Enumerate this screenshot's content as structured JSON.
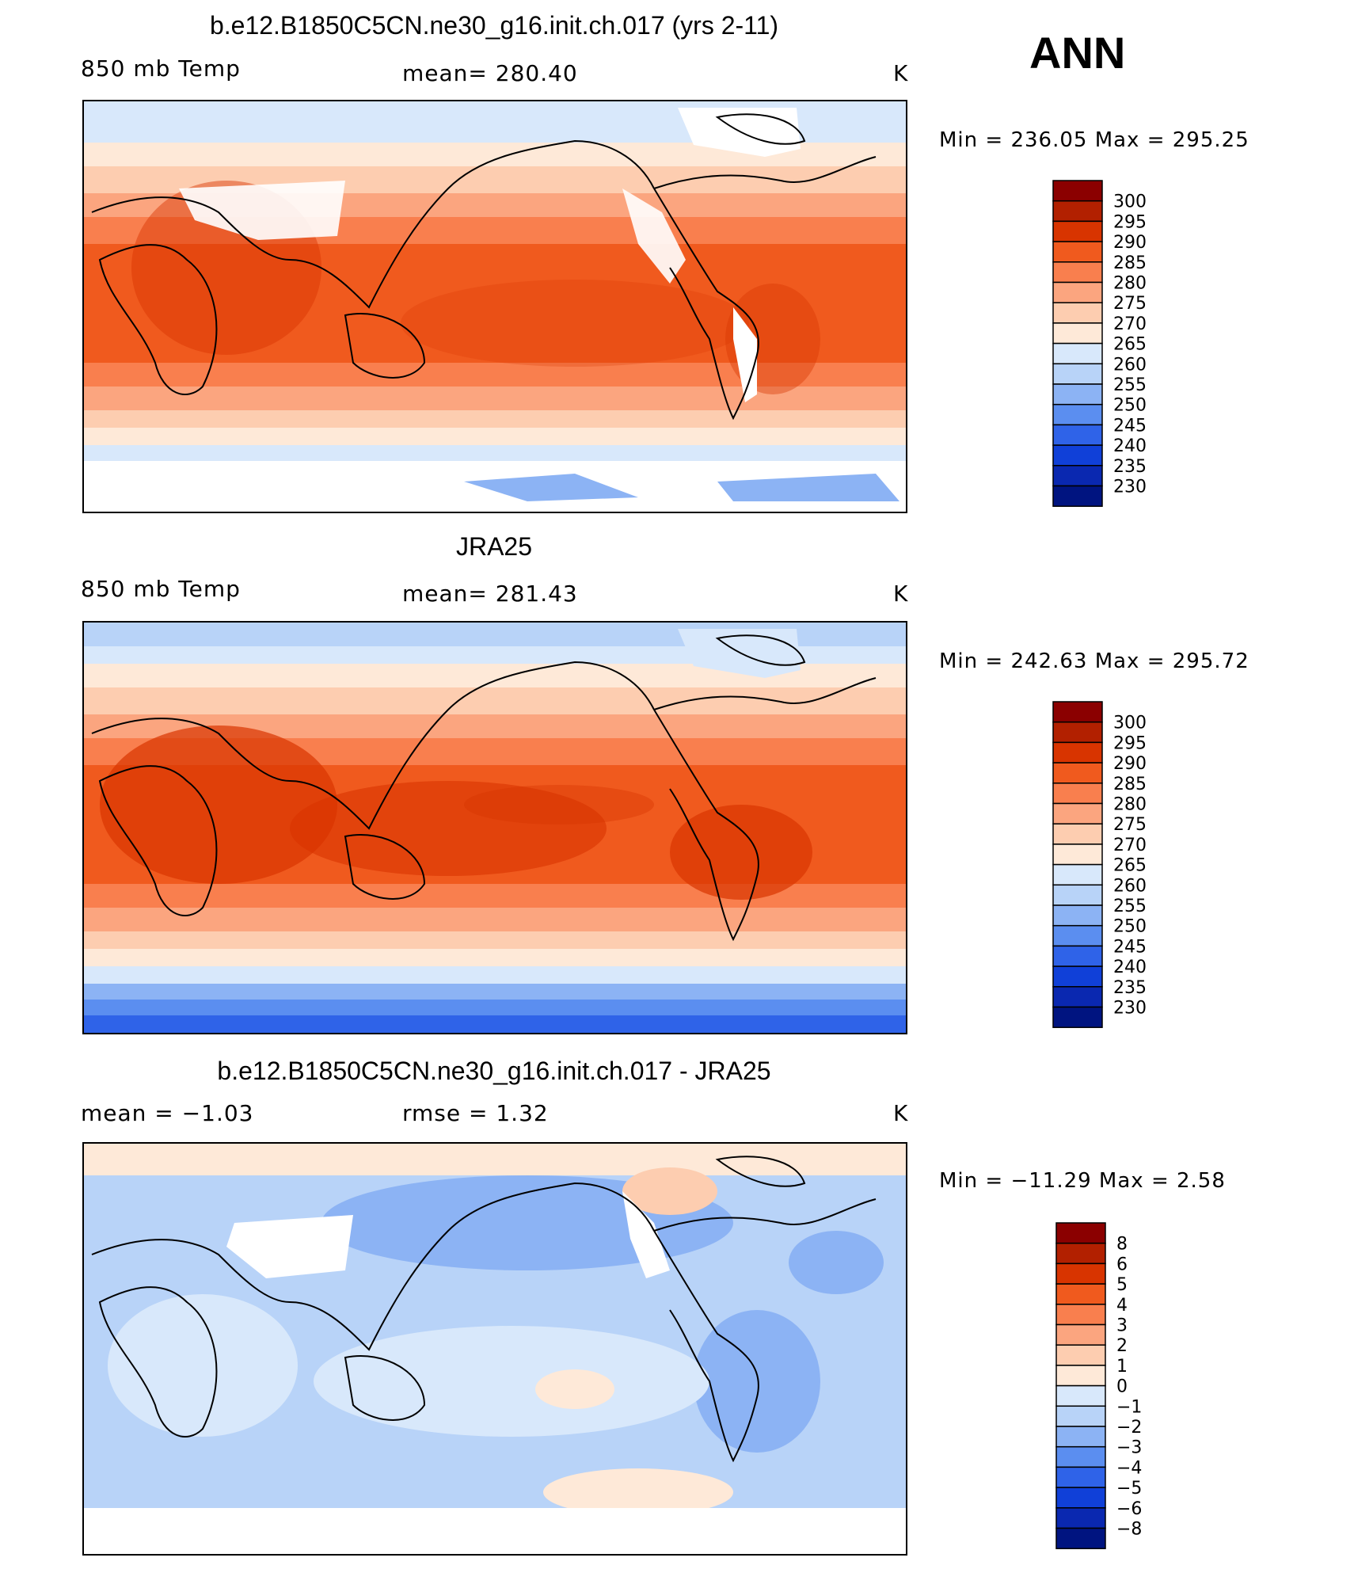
{
  "season": "ANN",
  "panels": [
    {
      "title": "b.e12.B1850C5CN.ne30_g16.init.ch.017 (yrs 2-11)",
      "left_label": "850 mb Temp",
      "center_label": "mean=  280.40",
      "right_label": "K",
      "minmax": "Min  =  236.05  Max  =  295.25",
      "colorbar_labels": [
        "300",
        "295",
        "290",
        "285",
        "280",
        "275",
        "270",
        "265",
        "260",
        "255",
        "250",
        "245",
        "240",
        "235",
        "230"
      ]
    },
    {
      "title": "JRA25",
      "left_label": "850 mb Temp",
      "center_label": "mean=  281.43",
      "right_label": "K",
      "minmax": "Min  =  242.63  Max  =  295.72",
      "colorbar_labels": [
        "300",
        "295",
        "290",
        "285",
        "280",
        "275",
        "270",
        "265",
        "260",
        "255",
        "250",
        "245",
        "240",
        "235",
        "230"
      ]
    },
    {
      "title": "b.e12.B1850C5CN.ne30_g16.init.ch.017 - JRA25",
      "left_label": "mean  =    −1.03",
      "center_label": "rmse  =     1.32",
      "right_label": "K",
      "minmax": "Min  =  −11.29  Max  =     2.58",
      "colorbar_labels": [
        "8",
        "6",
        "5",
        "4",
        "3",
        "2",
        "1",
        "0",
        "−1",
        "−2",
        "−3",
        "−4",
        "−5",
        "−6",
        "−8"
      ]
    }
  ],
  "colors": {
    "abs_scale": [
      "#8b0000",
      "#b22000",
      "#d83400",
      "#f05a1e",
      "#f97f4e",
      "#fba57f",
      "#fdcdb0",
      "#fee9d8",
      "#d8e8fb",
      "#b8d3f8",
      "#8cb3f4",
      "#5b8ef0",
      "#2f63e8",
      "#1040d8",
      "#0a28b0",
      "#001480"
    ],
    "diff_scale": [
      "#8b0000",
      "#b22000",
      "#d83400",
      "#f05a1e",
      "#f97f4e",
      "#fba57f",
      "#fdcdb0",
      "#fee9d8",
      "#d8e8fb",
      "#b8d3f8",
      "#8cb3f4",
      "#5b8ef0",
      "#2f63e8",
      "#1040d8",
      "#0a28b0",
      "#001480"
    ]
  }
}
